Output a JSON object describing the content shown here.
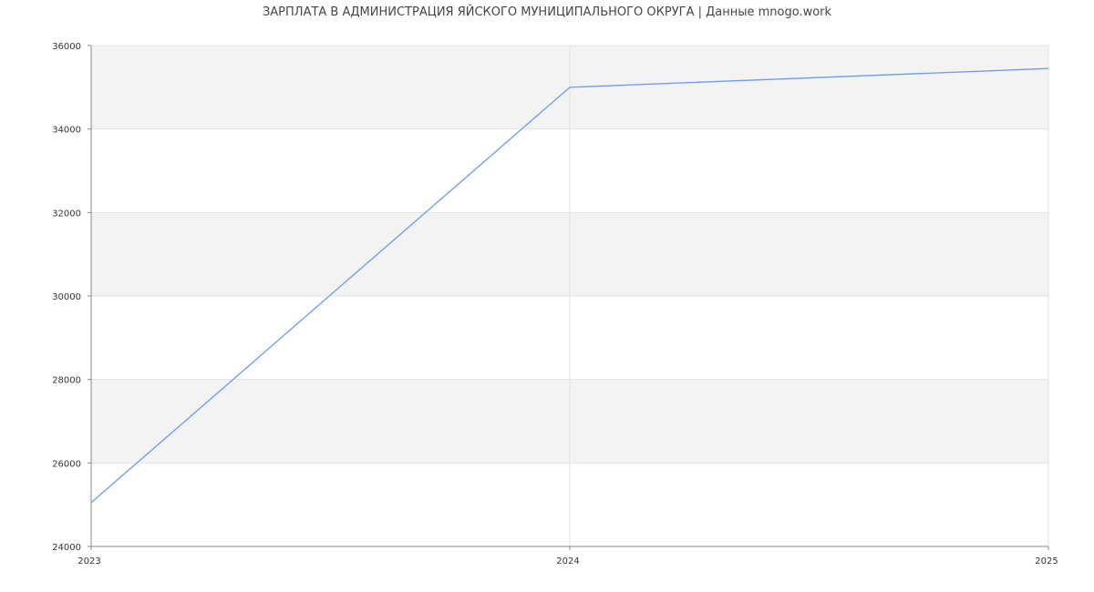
{
  "chart_data": {
    "type": "line",
    "title": "ЗАРПЛАТА В АДМИНИСТРАЦИЯ ЯЙСКОГО МУНИЦИПАЛЬНОГО ОКРУГА | Данные mnogo.work",
    "xlabel": "",
    "ylabel": "",
    "x": [
      "2023",
      "2024",
      "2025"
    ],
    "series": [
      {
        "values": [
          25050,
          35000,
          35450
        ],
        "color": "#6b9bf2"
      }
    ],
    "ylim": [
      24000,
      36000
    ],
    "yticks": [
      "24000",
      "26000",
      "28000",
      "30000",
      "32000",
      "34000",
      "36000"
    ],
    "grid": true,
    "band_color": "#f3f3f3",
    "legend": "none"
  }
}
